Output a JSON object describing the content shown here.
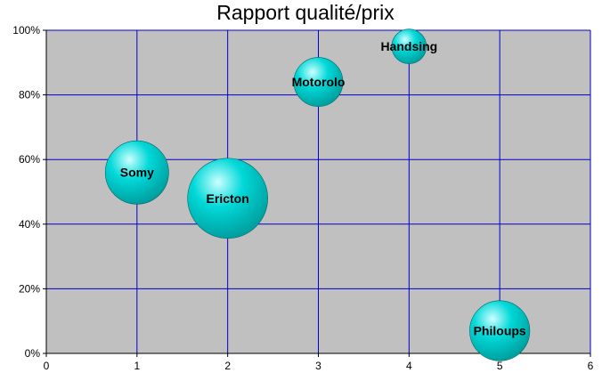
{
  "colors": {
    "plot_background": "#C0C0C0",
    "gridline": "#0000CC",
    "bubble_fill": "#00D8D8",
    "bubble_highlight": "#CCFFFF",
    "bubble_edge": "#006666",
    "axis": "#000000"
  },
  "chart_data": {
    "type": "bubble",
    "title": "Rapport qualité/prix",
    "xlabel": "",
    "ylabel": "",
    "xlim": [
      0,
      6
    ],
    "ylim": [
      0,
      1
    ],
    "x_ticks": [
      "0",
      "1",
      "2",
      "3",
      "4",
      "5",
      "6"
    ],
    "y_ticks": [
      "0%",
      "20%",
      "40%",
      "60%",
      "80%",
      "100%"
    ],
    "grid": true,
    "points": [
      {
        "label": "Somy",
        "x": 1,
        "y": 0.56,
        "size": 5
      },
      {
        "label": "Ericton",
        "x": 2,
        "y": 0.48,
        "size": 8
      },
      {
        "label": "Motorolo",
        "x": 3,
        "y": 0.84,
        "size": 3
      },
      {
        "label": "Handsing",
        "x": 4,
        "y": 0.95,
        "size": 1.5
      },
      {
        "label": "Philoups",
        "x": 5,
        "y": 0.07,
        "size": 4.5
      }
    ]
  }
}
